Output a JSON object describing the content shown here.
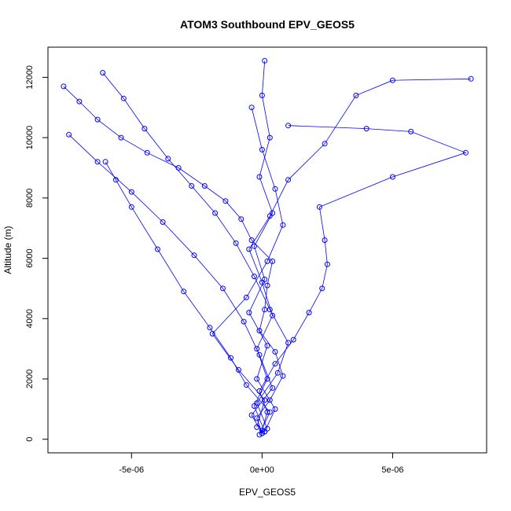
{
  "chart_data": {
    "type": "line",
    "title": "ATOM3 Southbound EPV_GEOS5",
    "xlabel": "EPV_GEOS5",
    "ylabel": "Altitude (m)",
    "xlim": [
      -8.2e-06,
      8.6e-06
    ],
    "ylim": [
      -450,
      13000
    ],
    "x_ticks": [
      {
        "value": -5e-06,
        "label": "-5e-06"
      },
      {
        "value": 0,
        "label": "0e+00"
      },
      {
        "value": 5e-06,
        "label": "5e-06"
      }
    ],
    "y_ticks": [
      {
        "value": 0,
        "label": "0"
      },
      {
        "value": 2000,
        "label": "2000"
      },
      {
        "value": 4000,
        "label": "4000"
      },
      {
        "value": 6000,
        "label": "6000"
      },
      {
        "value": 8000,
        "label": "8000"
      },
      {
        "value": 10000,
        "label": "10000"
      },
      {
        "value": 12000,
        "label": "12000"
      }
    ],
    "marker": "open-circle",
    "color": "#0000ff",
    "grid": false,
    "legend": "none",
    "series": [
      {
        "x": [
          0.0,
          -2e-07,
          3e-07,
          8e-07,
          5e-07,
          -1e-07,
          1e-07,
          2e-07,
          4e-07,
          -4e-07,
          -8e-07,
          -1.4e-06,
          -2.2e-06,
          -3.2e-06,
          -4.4e-06,
          -5.4e-06,
          -6.3e-06,
          -7e-06,
          -7.6e-06
        ],
        "y": [
          200,
          700,
          1300,
          2100,
          2900,
          3600,
          4300,
          5100,
          5900,
          6600,
          7300,
          7900,
          8400,
          9000,
          9500,
          10000,
          10600,
          11200,
          11700
        ]
      },
      {
        "x": [
          0.0,
          2e-07,
          -1e-07,
          5e-07,
          1.2e-06,
          1.8e-06,
          2.3e-06,
          2.5e-06,
          2.4e-06,
          2.2e-06,
          5e-06,
          7.8e-06,
          5.7e-06,
          4e-06,
          1e-06
        ],
        "y": [
          300,
          900,
          1600,
          2500,
          3300,
          4200,
          5000,
          5800,
          6600,
          7700,
          8700,
          9500,
          10200,
          10300,
          10400
        ]
      },
      {
        "x": [
          1e-07,
          -3e-07,
          2e-07,
          -2e-07,
          4e-07,
          0.0,
          -5e-07,
          3e-07,
          1e-06,
          2.4e-06,
          3.6e-06,
          5e-06,
          8e-06
        ],
        "y": [
          250,
          1100,
          2000,
          3000,
          4100,
          5200,
          6300,
          7400,
          8600,
          9800,
          11400,
          11900,
          11950
        ]
      },
      {
        "x": [
          -1e-07,
          3e-07,
          -6e-07,
          -1.2e-06,
          -2e-06,
          -3e-06,
          -4e-06,
          -5e-06,
          -5.6e-06,
          -6e-06
        ],
        "y": [
          150,
          900,
          1800,
          2700,
          3700,
          4900,
          6300,
          7700,
          8600,
          9200
        ]
      },
      {
        "x": [
          2e-07,
          -2e-07,
          6e-07,
          1e-06,
          3e-07,
          -3e-07,
          -1e-06,
          -1.8e-06,
          -2.7e-06,
          -3.6e-06,
          -4.5e-06,
          -5.3e-06,
          -6.1e-06
        ],
        "y": [
          350,
          1200,
          2200,
          3200,
          4300,
          5400,
          6500,
          7500,
          8400,
          9300,
          10300,
          11300,
          12150
        ]
      },
      {
        "x": [
          0.0,
          -4e-07,
          4e-07,
          -1e-07,
          -7e-07,
          -1.5e-06,
          -2.6e-06,
          -3.8e-06,
          -5e-06,
          -6.3e-06,
          -7.4e-06
        ],
        "y": [
          200,
          800,
          1700,
          2800,
          3900,
          5000,
          6100,
          7200,
          8200,
          9200,
          10100
        ]
      },
      {
        "x": [
          1e-07,
          5e-07,
          -2e-07,
          2e-07,
          -5e-07,
          1e-07,
          -3e-07,
          4e-07,
          -1e-07,
          3e-07,
          0.0,
          1e-07
        ],
        "y": [
          250,
          1000,
          2000,
          3100,
          4200,
          5300,
          6400,
          7500,
          8700,
          10000,
          11400,
          12550
        ]
      },
      {
        "x": [
          -2e-07,
          1e-07,
          -9e-07,
          -1.9e-06,
          -6e-07,
          2e-07,
          8e-07,
          5e-07,
          0.0,
          -4e-07
        ],
        "y": [
          400,
          1300,
          2300,
          3500,
          4700,
          5900,
          7100,
          8300,
          9600,
          11000
        ]
      }
    ]
  }
}
